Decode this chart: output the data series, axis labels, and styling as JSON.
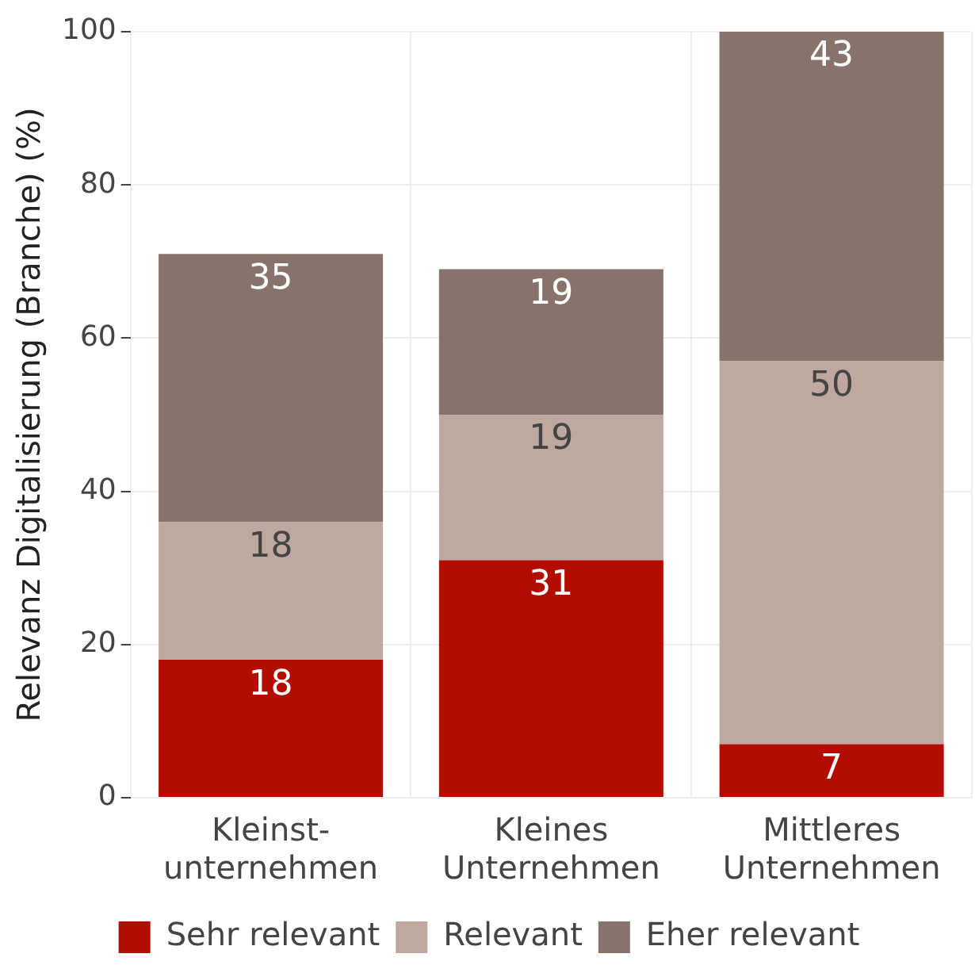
{
  "chart_data": {
    "type": "bar",
    "stacked": true,
    "ylabel": "Relevanz Digitalisierung (Branche) (%)",
    "categories": [
      "Kleinst- unternehmen",
      "Kleines Unternehmen",
      "Mittleres Unternehmen"
    ],
    "series": [
      {
        "name": "Sehr relevant",
        "color": "#b30c00",
        "values": [
          18,
          31,
          7
        ]
      },
      {
        "name": "Relevant",
        "color": "#bfa8a0",
        "values": [
          18,
          19,
          50
        ]
      },
      {
        "name": "Eher relevant",
        "color": "#87736b",
        "values": [
          35,
          19,
          43
        ]
      }
    ],
    "ylim": [
      0,
      100
    ],
    "yticks": [
      0,
      20,
      40,
      60,
      80,
      100
    ],
    "grid": true,
    "legend": "bottom",
    "data_labels": true
  }
}
